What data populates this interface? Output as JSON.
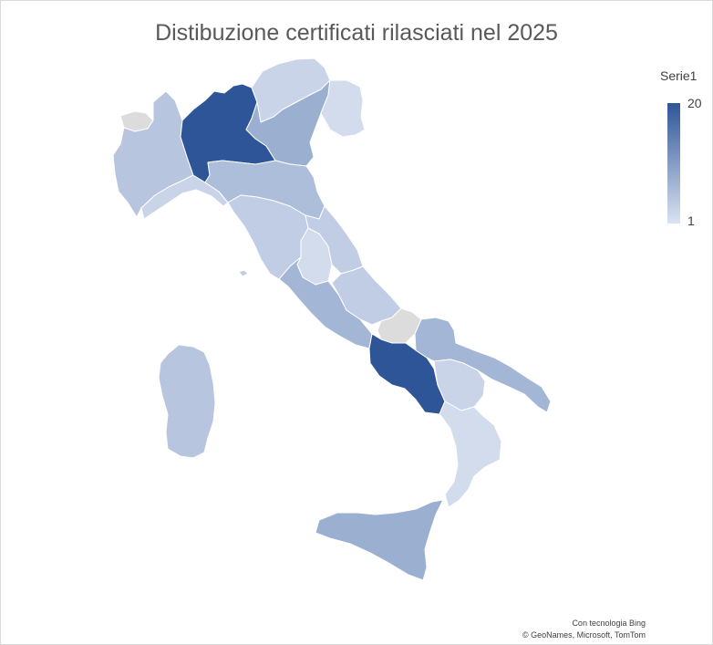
{
  "title": "Distibuzione certificati rilasciati nel 2025",
  "legend": {
    "series_name": "Serie1",
    "max_label": "20",
    "min_label": "1",
    "color_high": "#2e5597",
    "color_low": "#dbe3f2"
  },
  "colors": {
    "no_data": "#dcdcdc",
    "border": "#ffffff"
  },
  "attribution": {
    "line1": "Con tecnologia Bing",
    "line2": "© GeoNames, Microsoft, TomTom"
  },
  "regions": [
    {
      "name": "Valle d'Aosta",
      "value": null
    },
    {
      "name": "Piemonte",
      "value": 5
    },
    {
      "name": "Liguria",
      "value": 3
    },
    {
      "name": "Lombardia",
      "value": 20
    },
    {
      "name": "Trentino-Alto Adige",
      "value": 3
    },
    {
      "name": "Veneto",
      "value": 8
    },
    {
      "name": "Friuli-Venezia Giulia",
      "value": 2
    },
    {
      "name": "Emilia-Romagna",
      "value": 6
    },
    {
      "name": "Toscana",
      "value": 4
    },
    {
      "name": "Umbria",
      "value": 2
    },
    {
      "name": "Marche",
      "value": 4
    },
    {
      "name": "Lazio",
      "value": 7
    },
    {
      "name": "Abruzzo",
      "value": 4
    },
    {
      "name": "Molise",
      "value": null
    },
    {
      "name": "Campania",
      "value": 20
    },
    {
      "name": "Puglia",
      "value": 7
    },
    {
      "name": "Basilicata",
      "value": 3
    },
    {
      "name": "Calabria",
      "value": 2
    },
    {
      "name": "Sicilia",
      "value": 8
    },
    {
      "name": "Sardegna",
      "value": 5
    }
  ]
}
